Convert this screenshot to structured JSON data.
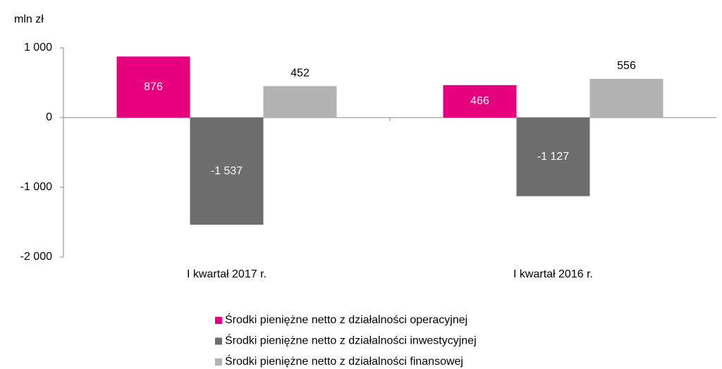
{
  "chart_data": {
    "type": "bar",
    "y_label": "mln zł",
    "categories": [
      "I kwartał 2017 r.",
      "I kwartał 2016 r."
    ],
    "series": [
      {
        "name": "Środki pieniężne netto z działalności operacyjnej",
        "color": "#e6007e",
        "values": [
          876,
          466
        ],
        "value_labels": [
          "876",
          "466"
        ]
      },
      {
        "name": "Środki pieniężne netto z działalności inwestycyjnej",
        "color": "#6d6d6d",
        "values": [
          -1537,
          -1127
        ],
        "value_labels": [
          "-1 537",
          "-1 127"
        ]
      },
      {
        "name": "Środki pieniężne netto z działalności finansowej",
        "color": "#b2b2b2",
        "values": [
          452,
          556
        ],
        "value_labels": [
          "452",
          "556"
        ]
      }
    ],
    "ylim": [
      -2000,
      1000
    ],
    "yticks": [
      {
        "value": -2000,
        "label": "-2 000"
      },
      {
        "value": -1000,
        "label": "-1 000"
      },
      0,
      {
        "value": 1000,
        "label": "1 000"
      }
    ],
    "grid": false,
    "legend": "bottom"
  }
}
